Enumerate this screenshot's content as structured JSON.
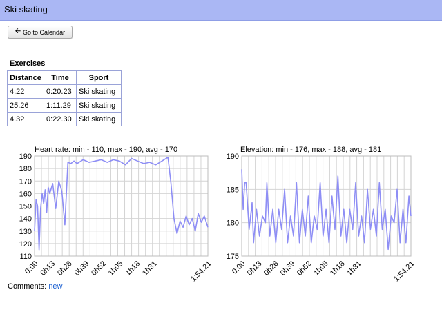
{
  "page": {
    "title": "Ski skating"
  },
  "toolbar": {
    "back_label": "Go to Calendar"
  },
  "exercises": {
    "heading": "Exercises",
    "columns": [
      "Distance",
      "Time",
      "Sport"
    ],
    "rows": [
      [
        "4.22",
        "0:20.23",
        "Ski skating"
      ],
      [
        "25.26",
        "1:11.29",
        "Ski skating"
      ],
      [
        "4.32",
        "0:22.30",
        "Ski skating"
      ]
    ]
  },
  "comments": {
    "label": "Comments:",
    "link": "new"
  },
  "colors": {
    "series": "#8e8ef5",
    "grid": "#d4d4d4",
    "title_bar": "#aab7f4",
    "table_border": "#9aa3d8"
  },
  "chart_data": [
    {
      "type": "line",
      "title": "Heart rate: min - 110, max - 190, avg - 170",
      "xlabel": "",
      "ylabel": "",
      "xlim": [
        "0:00",
        "1:54.21"
      ],
      "ylim": [
        110,
        190
      ],
      "y_ticks": [
        "190",
        "180",
        "170",
        "160",
        "150",
        "140",
        "130",
        "120",
        "110"
      ],
      "x_ticks": [
        "0:00",
        "0h13",
        "0h26",
        "0h39",
        "0h52",
        "1h05",
        "1h18",
        "1h31",
        "1:54.21"
      ],
      "grid": true,
      "series": [
        {
          "x": [
            0,
            1,
            2,
            3,
            4,
            5,
            6,
            7,
            8,
            9,
            10,
            12,
            14,
            16,
            18,
            20,
            22,
            24,
            26,
            28,
            32,
            36,
            40,
            44,
            48,
            52,
            56,
            60,
            64,
            68,
            72,
            76,
            80,
            84,
            88,
            90,
            92,
            94,
            96,
            98,
            100,
            102,
            104,
            106,
            108,
            110,
            112,
            114.35
          ],
          "y": [
            130,
            155,
            150,
            115,
            148,
            160,
            152,
            163,
            145,
            165,
            160,
            168,
            148,
            170,
            162,
            135,
            185,
            184,
            186,
            184,
            187,
            185,
            186,
            187,
            185,
            187,
            186,
            183,
            188,
            186,
            184,
            185,
            183,
            186,
            189,
            168,
            140,
            128,
            138,
            133,
            142,
            135,
            140,
            130,
            144,
            137,
            142,
            133
          ]
        }
      ]
    },
    {
      "type": "line",
      "title": "Elevation: min - 176, max - 188, avg - 181",
      "xlabel": "",
      "ylabel": "",
      "xlim": [
        "0:00",
        "1:54.21"
      ],
      "ylim": [
        175,
        190
      ],
      "y_ticks": [
        "190",
        "185",
        "180",
        "175"
      ],
      "x_ticks": [
        "0:00",
        "0h13",
        "0h26",
        "0h39",
        "0h52",
        "1h05",
        "1h18",
        "1h31",
        "1:54.21"
      ],
      "grid": true,
      "series": [
        {
          "x": [
            0,
            1,
            2,
            3,
            5,
            7,
            8,
            10,
            12,
            14,
            16,
            17,
            19,
            21,
            23,
            25,
            27,
            29,
            31,
            33,
            35,
            37,
            39,
            41,
            43,
            45,
            47,
            49,
            51,
            53,
            55,
            57,
            59,
            61,
            63,
            65,
            67,
            69,
            71,
            73,
            75,
            77,
            79,
            81,
            83,
            85,
            87,
            89,
            91,
            93,
            95,
            97,
            99,
            101,
            103,
            105,
            107,
            109,
            111,
            113,
            114.35
          ],
          "y": [
            188,
            182,
            186,
            186,
            179,
            183,
            177,
            182,
            178,
            181,
            180,
            186,
            178,
            182,
            177,
            182,
            179,
            185,
            177,
            181,
            178,
            186,
            177,
            182,
            178,
            184,
            177,
            181,
            179,
            186,
            178,
            182,
            177,
            184,
            179,
            187,
            178,
            182,
            177,
            182,
            179,
            186,
            178,
            181,
            177,
            185,
            179,
            182,
            178,
            186,
            179,
            182,
            176,
            181,
            180,
            185,
            177,
            182,
            177,
            184,
            181
          ]
        }
      ]
    }
  ]
}
